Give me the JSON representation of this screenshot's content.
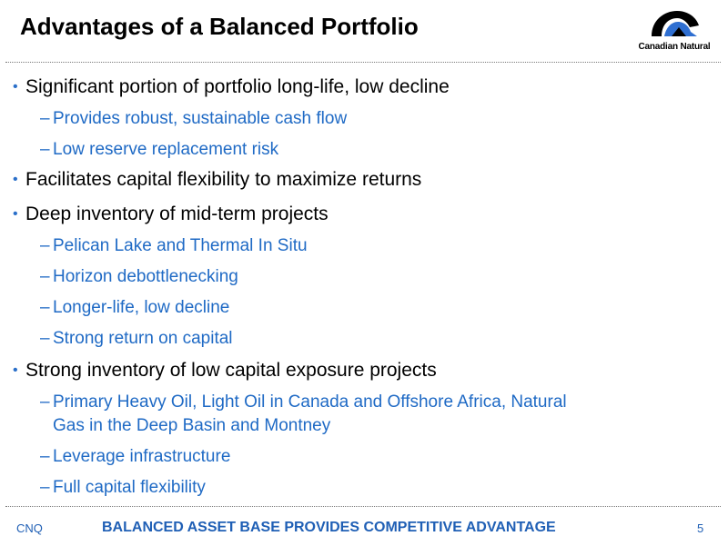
{
  "slide": {
    "title": "Advantages of a Balanced Portfolio"
  },
  "logo": {
    "text": "Canadian Natural",
    "icon": "canadian-natural-logo-icon"
  },
  "bullets": [
    {
      "text": "Significant portion of portfolio long-life, low decline",
      "subs": [
        "Provides robust, sustainable cash flow",
        "Low reserve replacement risk"
      ]
    },
    {
      "text": "Facilitates capital flexibility to maximize returns",
      "subs": []
    },
    {
      "text": "Deep inventory of mid-term projects",
      "subs": [
        "Pelican Lake and Thermal In Situ",
        "Horizon debottlenecking",
        "Longer-life, low decline",
        "Strong return on capital"
      ]
    },
    {
      "text": "Strong inventory of low capital exposure projects",
      "subs": [
        {
          "line1": "Primary Heavy Oil, Light Oil in Canada and Offshore Africa, Natural",
          "line2": "Gas in the Deep Basin and Montney"
        },
        "Leverage infrastructure",
        "Full capital flexibility"
      ]
    }
  ],
  "footer": {
    "left": "CNQ",
    "center": "BALANCED ASSET BASE PROVIDES COMPETITIVE ADVANTAGE",
    "page_number": "5"
  },
  "colors": {
    "bullet_dot": "#2a6fc9",
    "sub_text": "#1f6ac5",
    "footer_text": "#1f5fb5"
  }
}
